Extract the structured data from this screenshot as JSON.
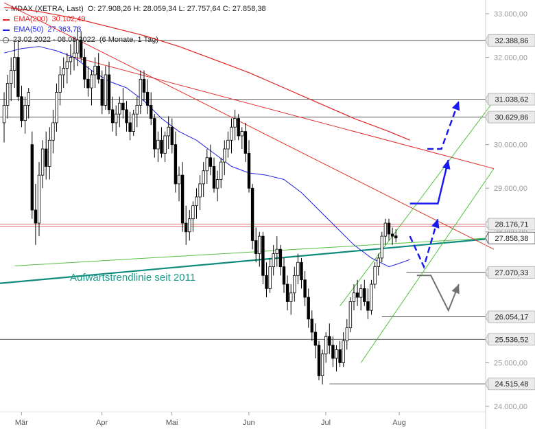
{
  "header": {
    "symbol_line": "MDAX (XETRA, Last)",
    "ohlc": "O: 27.908,26  H: 28.059,34  L: 27.757,64  C: 27.858,38",
    "ema200_label": "EMA(200)",
    "ema200_value": "30.102,49",
    "ema50_label": "EMA(50)",
    "ema50_value": "27.363,73",
    "range": "23.02.2022 - 08.08.2022",
    "period": "(6 Monate, 1 Tag)"
  },
  "colors": {
    "ema200": "#e02020",
    "ema50": "#2020e0",
    "candle": "#000000",
    "trend_teal": "#0e8a7a",
    "trend_green": "#55c040",
    "resistance_red": "#e03030",
    "projection_blue": "#1a1aee",
    "projection_gray": "#707070",
    "level_line": "#555555",
    "hline_red": "#e07070"
  },
  "annotation": {
    "trendline_label": "Aufwärtstrendlinie seit 2011"
  },
  "chart_data": {
    "type": "candlestick",
    "title": "MDAX (XETRA, Last)",
    "xlabel": "",
    "ylabel": "",
    "ylim": [
      23800,
      33200
    ],
    "y_ticks": [
      {
        "value": 33000,
        "label": "33.000,00"
      },
      {
        "value": 32000,
        "label": "32.000,00"
      },
      {
        "value": 31000,
        "label": "31.000,00"
      },
      {
        "value": 30000,
        "label": "30.000,00"
      },
      {
        "value": 29000,
        "label": "29.000,00"
      },
      {
        "value": 28000,
        "label": "28.000,00"
      },
      {
        "value": 27000,
        "label": "27.000,00"
      },
      {
        "value": 26000,
        "label": "26.000,00"
      },
      {
        "value": 25000,
        "label": "25.000,00"
      },
      {
        "value": 24000,
        "label": "24.000,00"
      }
    ],
    "x_ticks": [
      {
        "label": "Mär",
        "index": 3
      },
      {
        "label": "Apr",
        "index": 26
      },
      {
        "label": "Mai",
        "index": 46
      },
      {
        "label": "Jun",
        "index": 68
      },
      {
        "label": "Jul",
        "index": 90
      },
      {
        "label": "Aug",
        "index": 111
      }
    ],
    "x_count": 134,
    "levels": [
      {
        "value": 32388.86,
        "label": "32.388,86",
        "style": "gray"
      },
      {
        "value": 31038.62,
        "label": "31.038,62",
        "style": "gray"
      },
      {
        "value": 30629.86,
        "label": "30.629,86",
        "style": "gray"
      },
      {
        "value": 28176.71,
        "label": "28.176,71",
        "style": "red"
      },
      {
        "value": 27858.38,
        "label": "27.858,38",
        "style": "current"
      },
      {
        "value": 27070.33,
        "label": "27.070,33",
        "style": "gray"
      },
      {
        "value": 26054.17,
        "label": "26.054,17",
        "style": "gray"
      },
      {
        "value": 25536.52,
        "label": "25.536,52",
        "style": "gray"
      },
      {
        "value": 24515.48,
        "label": "24.515,48",
        "style": "gray"
      }
    ],
    "candles": [
      [
        30500,
        31200,
        30050,
        30900
      ],
      [
        30900,
        31600,
        30600,
        31400
      ],
      [
        31400,
        32000,
        31000,
        31700
      ],
      [
        31700,
        32350,
        31300,
        32000
      ],
      [
        32000,
        32400,
        31000,
        31100
      ],
      [
        31100,
        31350,
        30400,
        30550
      ],
      [
        30550,
        31100,
        30250,
        30900
      ],
      [
        30900,
        31300,
        30600,
        31200
      ],
      [
        30000,
        30300,
        28300,
        28500
      ],
      [
        28500,
        29100,
        27700,
        28200
      ],
      [
        28200,
        29600,
        27900,
        29300
      ],
      [
        29300,
        30100,
        29000,
        29900
      ],
      [
        29900,
        30300,
        29200,
        29500
      ],
      [
        29500,
        30400,
        29200,
        30100
      ],
      [
        30100,
        30800,
        29800,
        30500
      ],
      [
        30500,
        31400,
        30300,
        31200
      ],
      [
        31200,
        31800,
        30900,
        31600
      ],
      [
        31600,
        32000,
        31300,
        31750
      ],
      [
        31750,
        32100,
        31400,
        31900
      ],
      [
        31900,
        32300,
        31600,
        32000
      ],
      [
        32000,
        32450,
        31700,
        32100
      ],
      [
        32100,
        32700,
        31800,
        32400
      ],
      [
        32400,
        32600,
        31900,
        32000
      ],
      [
        32000,
        32200,
        31300,
        31500
      ],
      [
        31500,
        31800,
        31100,
        31300
      ],
      [
        31300,
        31700,
        30900,
        31600
      ],
      [
        31600,
        32000,
        31300,
        31800
      ],
      [
        31800,
        32100,
        31400,
        31500
      ],
      [
        31500,
        31700,
        30700,
        30900
      ],
      [
        30900,
        31800,
        30800,
        31600
      ],
      [
        31600,
        31900,
        30700,
        30800
      ],
      [
        30800,
        31100,
        30300,
        30500
      ],
      [
        30500,
        30900,
        30200,
        30700
      ],
      [
        30700,
        31100,
        30400,
        30950
      ],
      [
        30950,
        31300,
        30600,
        30800
      ],
      [
        30800,
        31000,
        30300,
        30500
      ],
      [
        30500,
        30750,
        30100,
        30300
      ],
      [
        30300,
        30800,
        30200,
        30700
      ],
      [
        30700,
        31100,
        30400,
        30900
      ],
      [
        30900,
        31700,
        30700,
        31500
      ],
      [
        31500,
        31700,
        31000,
        31200
      ],
      [
        31200,
        31500,
        30700,
        30900
      ],
      [
        30900,
        31200,
        30450,
        30600
      ],
      [
        30600,
        30700,
        29700,
        29900
      ],
      [
        29900,
        30300,
        29600,
        30100
      ],
      [
        30100,
        30400,
        29700,
        29800
      ],
      [
        29800,
        30300,
        29600,
        30200
      ],
      [
        30200,
        30650,
        29900,
        30400
      ],
      [
        30400,
        30600,
        29800,
        30000
      ],
      [
        30000,
        30300,
        28900,
        29100
      ],
      [
        29100,
        29500,
        28700,
        29300
      ],
      [
        29300,
        29600,
        28000,
        28200
      ],
      [
        28200,
        28600,
        27700,
        28000
      ],
      [
        28000,
        28500,
        27800,
        28300
      ],
      [
        28300,
        28700,
        28000,
        28600
      ],
      [
        28600,
        29000,
        28300,
        28800
      ],
      [
        28800,
        29300,
        28500,
        29100
      ],
      [
        29100,
        29600,
        28800,
        29400
      ],
      [
        29400,
        29900,
        29100,
        29700
      ],
      [
        29700,
        30000,
        29300,
        29500
      ],
      [
        29500,
        29700,
        28900,
        29000
      ],
      [
        29000,
        29400,
        28700,
        29200
      ],
      [
        29200,
        29700,
        29000,
        29600
      ],
      [
        29600,
        30100,
        29300,
        29900
      ],
      [
        29900,
        30300,
        29700,
        30100
      ],
      [
        30100,
        30600,
        29800,
        30400
      ],
      [
        30400,
        30800,
        30100,
        30600
      ],
      [
        30600,
        30700,
        30100,
        30200
      ],
      [
        30200,
        30400,
        29900,
        30300
      ],
      [
        30300,
        30500,
        29600,
        29800
      ],
      [
        29800,
        30100,
        28900,
        29000
      ],
      [
        29000,
        29100,
        27600,
        27800
      ],
      [
        27800,
        28100,
        27300,
        27500
      ],
      [
        27500,
        28000,
        27200,
        27900
      ],
      [
        27900,
        28000,
        26800,
        27000
      ],
      [
        27000,
        27300,
        26500,
        26700
      ],
      [
        26700,
        27400,
        26600,
        27200
      ],
      [
        27200,
        27700,
        27000,
        27500
      ],
      [
        27500,
        27900,
        27200,
        27600
      ],
      [
        27600,
        27700,
        27000,
        27200
      ],
      [
        27200,
        27400,
        26600,
        26800
      ],
      [
        26800,
        27000,
        26200,
        26400
      ],
      [
        26400,
        26800,
        26100,
        26600
      ],
      [
        26600,
        27200,
        26400,
        27000
      ],
      [
        27000,
        27500,
        26800,
        27300
      ],
      [
        27300,
        27400,
        26700,
        26900
      ],
      [
        26900,
        27100,
        26300,
        26500
      ],
      [
        26500,
        26700,
        25800,
        26000
      ],
      [
        26000,
        26200,
        25500,
        25700
      ],
      [
        25700,
        25900,
        25100,
        25400
      ],
      [
        25400,
        25500,
        24600,
        24700
      ],
      [
        24700,
        25300,
        24500,
        25200
      ],
      [
        25200,
        25700,
        25000,
        25600
      ],
      [
        25600,
        25900,
        25200,
        25400
      ],
      [
        25400,
        25600,
        24900,
        25100
      ],
      [
        25100,
        25400,
        24800,
        25300
      ],
      [
        25300,
        25500,
        24900,
        25000
      ],
      [
        25000,
        25700,
        24900,
        25500
      ],
      [
        25500,
        26000,
        25300,
        25800
      ],
      [
        25800,
        26500,
        25700,
        26400
      ],
      [
        26400,
        26800,
        26200,
        26600
      ],
      [
        26600,
        26900,
        26300,
        26500
      ],
      [
        26500,
        26800,
        26200,
        26700
      ],
      [
        26700,
        26900,
        26300,
        26400
      ],
      [
        26400,
        26700,
        26000,
        26200
      ],
      [
        26200,
        26900,
        26100,
        26800
      ],
      [
        26800,
        27300,
        26700,
        27200
      ],
      [
        27200,
        27500,
        27000,
        27400
      ],
      [
        27400,
        28000,
        27300,
        27900
      ],
      [
        27900,
        28300,
        27700,
        28200
      ],
      [
        28200,
        28300,
        27800,
        27950
      ],
      [
        27950,
        28100,
        27700,
        27900
      ],
      [
        27908.26,
        28059.34,
        27757.64,
        27858.38
      ]
    ],
    "candle_start_index": 0,
    "ema50": [
      [
        0,
        32100
      ],
      [
        5,
        32200
      ],
      [
        10,
        32250
      ],
      [
        15,
        32150
      ],
      [
        20,
        32000
      ],
      [
        25,
        31700
      ],
      [
        30,
        31450
      ],
      [
        35,
        31300
      ],
      [
        40,
        31000
      ],
      [
        45,
        30600
      ],
      [
        50,
        30300
      ],
      [
        55,
        30100
      ],
      [
        60,
        29800
      ],
      [
        65,
        29500
      ],
      [
        70,
        29350
      ],
      [
        75,
        29300
      ],
      [
        80,
        29200
      ],
      [
        85,
        28900
      ],
      [
        90,
        28500
      ],
      [
        95,
        28100
      ],
      [
        100,
        27700
      ],
      [
        105,
        27400
      ],
      [
        110,
        27200
      ],
      [
        112,
        27250
      ],
      [
        116,
        27363.73
      ]
    ],
    "ema200": [
      [
        0,
        33150
      ],
      [
        10,
        33050
      ],
      [
        20,
        32900
      ],
      [
        30,
        32700
      ],
      [
        40,
        32500
      ],
      [
        50,
        32250
      ],
      [
        60,
        31950
      ],
      [
        70,
        31650
      ],
      [
        80,
        31300
      ],
      [
        90,
        30950
      ],
      [
        100,
        30600
      ],
      [
        110,
        30300
      ],
      [
        116,
        30102.49
      ]
    ],
    "lines": [
      {
        "name": "trend_teal",
        "from": [
          -4,
          26800
        ],
        "to": [
          140,
          27850
        ]
      },
      {
        "name": "trend_green_thin",
        "from": [
          3,
          27220
        ],
        "to": [
          139,
          27860
        ]
      },
      {
        "name": "resistance_red_1",
        "from": [
          18,
          32050
        ],
        "to": [
          140,
          29450
        ]
      },
      {
        "name": "resistance_red_2",
        "from": [
          0,
          33250
        ],
        "to": [
          140,
          27600
        ]
      },
      {
        "name": "channel_low",
        "from": [
          102,
          25000
        ],
        "to": [
          140,
          29450
        ]
      },
      {
        "name": "channel_high",
        "from": [
          96,
          26300
        ],
        "to": [
          140,
          31000
        ]
      }
    ],
    "projection_blue": {
      "solid": [
        [
          116,
          28650
        ],
        [
          124,
          28650
        ],
        [
          127,
          29650
        ]
      ],
      "dashed_up": [
        [
          121,
          29900
        ],
        [
          125,
          29900
        ],
        [
          130,
          31000
        ]
      ],
      "dashed_down": [
        [
          116,
          27900
        ],
        [
          120,
          27200
        ],
        [
          124,
          28300
        ]
      ]
    },
    "projection_gray": [
      [
        118,
        27000
      ],
      [
        122,
        27000
      ],
      [
        127,
        26200
      ],
      [
        130,
        26800
      ]
    ]
  }
}
